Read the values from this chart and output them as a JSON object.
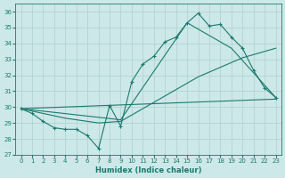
{
  "xlabel": "Humidex (Indice chaleur)",
  "xlim": [
    -0.5,
    23.5
  ],
  "ylim": [
    27,
    36.5
  ],
  "yticks": [
    27,
    28,
    29,
    30,
    31,
    32,
    33,
    34,
    35,
    36
  ],
  "xticks": [
    0,
    1,
    2,
    3,
    4,
    5,
    6,
    7,
    8,
    9,
    10,
    11,
    12,
    13,
    14,
    15,
    16,
    17,
    18,
    19,
    20,
    21,
    22,
    23
  ],
  "background_color": "#cde8e8",
  "grid_color": "#add0d0",
  "line_color": "#1a7a6e",
  "line1_x": [
    0,
    1,
    2,
    3,
    4,
    5,
    6,
    7,
    8,
    9,
    10,
    11,
    12,
    13,
    14,
    15,
    16,
    17,
    18,
    19,
    20,
    21,
    22,
    23
  ],
  "line1_y": [
    29.9,
    29.6,
    29.1,
    28.7,
    28.6,
    28.6,
    28.2,
    27.4,
    30.1,
    28.8,
    31.6,
    32.7,
    33.2,
    34.1,
    34.4,
    35.3,
    35.9,
    35.1,
    35.2,
    34.4,
    33.7,
    32.3,
    31.2,
    30.6
  ],
  "line2_x": [
    0,
    1,
    2,
    3,
    4,
    5,
    6,
    7,
    8,
    9,
    10,
    11,
    12,
    13,
    14,
    15,
    16,
    17,
    18,
    19,
    20,
    21,
    22,
    23
  ],
  "line2_y": [
    29.9,
    29.75,
    29.6,
    29.45,
    29.3,
    29.2,
    29.1,
    29.0,
    29.05,
    29.1,
    29.5,
    29.9,
    30.3,
    30.7,
    31.1,
    31.5,
    31.9,
    32.2,
    32.5,
    32.8,
    33.1,
    33.3,
    33.5,
    33.7
  ],
  "line3_x": [
    0,
    23
  ],
  "line3_y": [
    29.9,
    30.5
  ],
  "line4_x": [
    0,
    9,
    15,
    19,
    23
  ],
  "line4_y": [
    29.9,
    29.2,
    35.3,
    33.7,
    30.6
  ]
}
